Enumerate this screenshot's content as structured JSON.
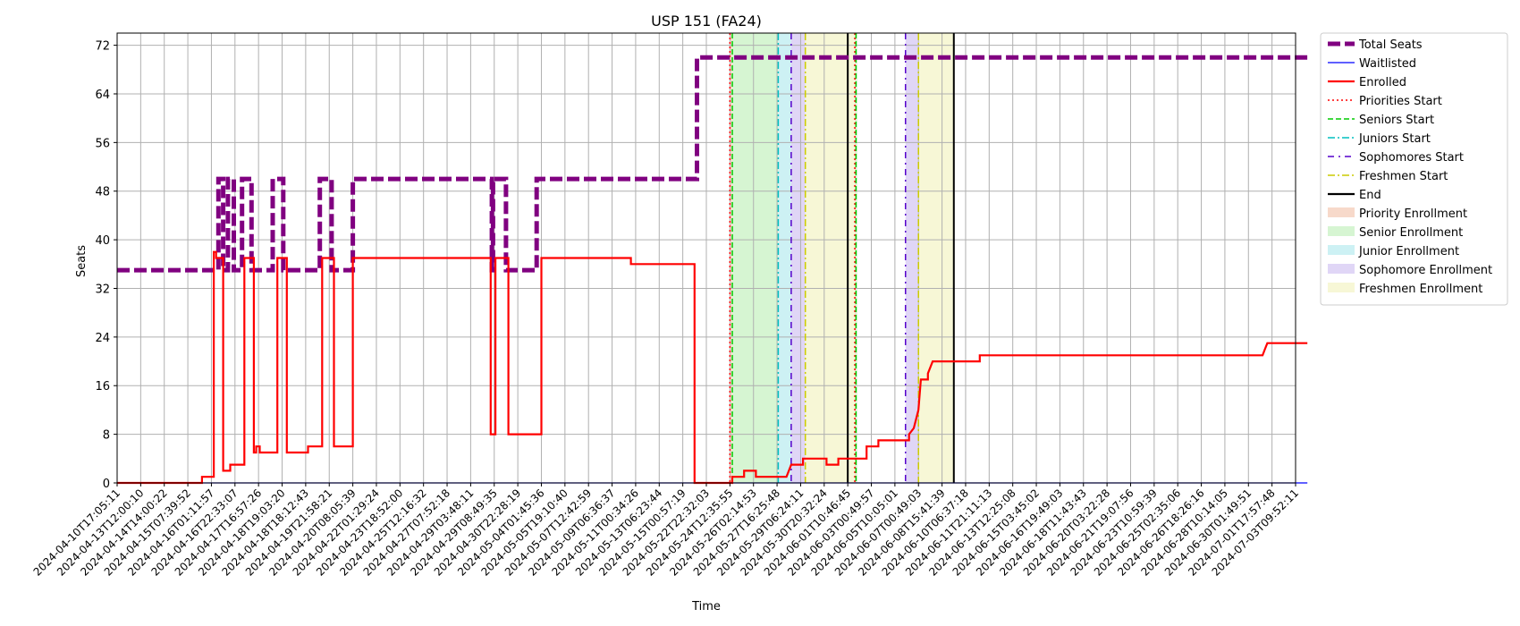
{
  "chart_data": {
    "type": "line",
    "title": "USP 151 (FA24)",
    "xlabel": "Time",
    "ylabel": "Seats",
    "ylim": [
      0,
      74
    ],
    "yticks": [
      0,
      8,
      16,
      24,
      32,
      40,
      48,
      56,
      64,
      72
    ],
    "x_tick_labels": [
      "2024-04-10T17:05:11",
      "2024-04-13T12:00:10",
      "2024-04-14T14:00:22",
      "2024-04-15T07:39:52",
      "2024-04-16T01:11:57",
      "2024-04-16T22:33:07",
      "2024-04-17T16:57:26",
      "2024-04-18T19:03:20",
      "2024-04-18T18:12:43",
      "2024-04-19T21:58:21",
      "2024-04-20T08:05:39",
      "2024-04-22T01:29:24",
      "2024-04-23T18:52:00",
      "2024-04-25T12:16:32",
      "2024-04-27T07:52:18",
      "2024-04-29T03:48:11",
      "2024-04-29T08:49:35",
      "2024-04-30T22:28:19",
      "2024-05-04T01:45:36",
      "2024-05-05T19:10:40",
      "2024-05-07T12:42:59",
      "2024-05-09T06:36:37",
      "2024-05-11T00:34:26",
      "2024-05-13T06:23:44",
      "2024-05-15T00:57:19",
      "2024-05-22T22:32:03",
      "2024-05-24T12:35:55",
      "2024-05-26T02:14:53",
      "2024-05-27T16:25:48",
      "2024-05-29T06:24:11",
      "2024-05-30T20:32:24",
      "2024-06-01T10:46:45",
      "2024-06-03T00:49:57",
      "2024-06-05T10:05:01",
      "2024-06-07T00:49:03",
      "2024-06-08T15:41:39",
      "2024-06-10T06:37:18",
      "2024-06-11T21:11:13",
      "2024-06-13T12:25:08",
      "2024-06-15T03:45:02",
      "2024-06-16T19:49:03",
      "2024-06-18T11:43:43",
      "2024-06-20T03:22:28",
      "2024-06-21T19:07:56",
      "2024-06-23T10:59:39",
      "2024-06-25T02:35:06",
      "2024-06-26T18:26:16",
      "2024-06-28T10:14:05",
      "2024-06-30T01:49:51",
      "2024-07-01T17:57:48",
      "2024-07-03T09:52:11"
    ],
    "series": [
      {
        "name": "Total Seats",
        "color": "#800080",
        "style": "dashed-thick",
        "points": [
          [
            0,
            35
          ],
          [
            4.3,
            35
          ],
          [
            4.3,
            50
          ],
          [
            4.5,
            50
          ],
          [
            4.5,
            35
          ],
          [
            4.7,
            35
          ],
          [
            4.7,
            50
          ],
          [
            4.95,
            50
          ],
          [
            4.95,
            35
          ],
          [
            5.3,
            35
          ],
          [
            5.3,
            50
          ],
          [
            5.7,
            50
          ],
          [
            5.7,
            35
          ],
          [
            6.6,
            35
          ],
          [
            6.6,
            50
          ],
          [
            7.05,
            50
          ],
          [
            7.05,
            35
          ],
          [
            8.6,
            35
          ],
          [
            8.6,
            50
          ],
          [
            9.1,
            50
          ],
          [
            9.1,
            35
          ],
          [
            10.0,
            35
          ],
          [
            10.0,
            50
          ],
          [
            15.9,
            50
          ],
          [
            15.9,
            35
          ],
          [
            15.95,
            35
          ],
          [
            15.95,
            50
          ],
          [
            16.5,
            50
          ],
          [
            16.5,
            35
          ],
          [
            17.8,
            35
          ],
          [
            17.8,
            50
          ],
          [
            24.6,
            50
          ],
          [
            24.6,
            70
          ],
          [
            50.5,
            70
          ]
        ]
      },
      {
        "name": "Waitlisted",
        "color": "#0000ff",
        "style": "solid-thin",
        "points": [
          [
            0,
            0
          ],
          [
            50.5,
            0
          ]
        ]
      },
      {
        "name": "Enrolled",
        "color": "#ff0000",
        "style": "solid",
        "points": [
          [
            0,
            0
          ],
          [
            3.6,
            0
          ],
          [
            3.6,
            1
          ],
          [
            4.1,
            1
          ],
          [
            4.1,
            38
          ],
          [
            4.2,
            38
          ],
          [
            4.2,
            37
          ],
          [
            4.5,
            37
          ],
          [
            4.5,
            2
          ],
          [
            4.8,
            2
          ],
          [
            4.8,
            3
          ],
          [
            5.4,
            3
          ],
          [
            5.4,
            37
          ],
          [
            5.8,
            37
          ],
          [
            5.8,
            5
          ],
          [
            5.9,
            5
          ],
          [
            5.9,
            6
          ],
          [
            6.05,
            6
          ],
          [
            6.05,
            5
          ],
          [
            6.8,
            5
          ],
          [
            6.8,
            37
          ],
          [
            7.2,
            37
          ],
          [
            7.2,
            5
          ],
          [
            8.1,
            5
          ],
          [
            8.1,
            6
          ],
          [
            8.7,
            6
          ],
          [
            8.7,
            37
          ],
          [
            9.2,
            37
          ],
          [
            9.2,
            6
          ],
          [
            10.0,
            6
          ],
          [
            10.0,
            37
          ],
          [
            15.85,
            37
          ],
          [
            15.85,
            8
          ],
          [
            16.05,
            8
          ],
          [
            16.05,
            37
          ],
          [
            16.6,
            37
          ],
          [
            16.6,
            8
          ],
          [
            18.0,
            8
          ],
          [
            18.0,
            37
          ],
          [
            21.8,
            37
          ],
          [
            21.8,
            36
          ],
          [
            24.5,
            36
          ],
          [
            24.5,
            0
          ],
          [
            26.1,
            0
          ],
          [
            26.1,
            1
          ],
          [
            26.6,
            1
          ],
          [
            26.6,
            2
          ],
          [
            27.1,
            2
          ],
          [
            27.1,
            1
          ],
          [
            28.4,
            1
          ],
          [
            28.6,
            3
          ],
          [
            29.1,
            3
          ],
          [
            29.1,
            4
          ],
          [
            30.1,
            4
          ],
          [
            30.1,
            3
          ],
          [
            30.6,
            3
          ],
          [
            30.6,
            4
          ],
          [
            31.8,
            4
          ],
          [
            31.8,
            6
          ],
          [
            32.3,
            6
          ],
          [
            32.3,
            7
          ],
          [
            33.6,
            7
          ],
          [
            33.6,
            8
          ],
          [
            33.8,
            9
          ],
          [
            34.0,
            12
          ],
          [
            34.1,
            17
          ],
          [
            34.4,
            17
          ],
          [
            34.4,
            18
          ],
          [
            34.6,
            20
          ],
          [
            36.6,
            20
          ],
          [
            36.6,
            21
          ],
          [
            48.6,
            21
          ],
          [
            48.7,
            22
          ],
          [
            48.8,
            23
          ],
          [
            50.5,
            23
          ]
        ]
      }
    ],
    "vertical_lines": [
      {
        "name": "Priorities Start",
        "x": 26.0,
        "color": "#ff0000",
        "style": "dotted"
      },
      {
        "name": "Seniors Start",
        "x": 26.1,
        "color": "#00cc00",
        "style": "dashed"
      },
      {
        "name": "Juniors Start",
        "x": 28.05,
        "color": "#00bfbf",
        "style": "dashdot"
      },
      {
        "name": "Sophomores Start",
        "x": 28.6,
        "color": "#5500cc",
        "style": "dashdotsparse"
      },
      {
        "name": "Freshmen Start",
        "x": 29.2,
        "color": "#cccc00",
        "style": "dashdot"
      },
      {
        "name": "End",
        "x": 31.0,
        "color": "#000000",
        "style": "solid"
      },
      {
        "name": "Priorities Start",
        "x": 31.3,
        "color": "#ff0000",
        "style": "dotted"
      },
      {
        "name": "Seniors Start",
        "x": 31.35,
        "color": "#00cc00",
        "style": "dashed"
      },
      {
        "name": "Sophomores Start",
        "x": 33.45,
        "color": "#5500cc",
        "style": "dashdotsparse"
      },
      {
        "name": "Freshmen Start",
        "x": 34.0,
        "color": "#cccc00",
        "style": "dashdot"
      },
      {
        "name": "End",
        "x": 35.5,
        "color": "#000000",
        "style": "solid"
      }
    ],
    "spans": [
      {
        "name": "Priority Enrollment",
        "x0": 26.0,
        "x1": 26.1,
        "color": "#f4c9b4"
      },
      {
        "name": "Senior Enrollment",
        "x0": 26.1,
        "x1": 28.05,
        "color": "#c5f1bf"
      },
      {
        "name": "Junior Enrollment",
        "x0": 28.05,
        "x1": 28.6,
        "color": "#b8ebf0"
      },
      {
        "name": "Sophomore Enrollment",
        "x0": 28.6,
        "x1": 29.2,
        "color": "#d3c4f2"
      },
      {
        "name": "Freshmen Enrollment",
        "x0": 29.2,
        "x1": 31.3,
        "color": "#f4f4c4"
      },
      {
        "name": "Priority Enrollment",
        "x0": 31.3,
        "x1": 31.35,
        "color": "#f4c9b4"
      },
      {
        "name": "Senior Enrollment",
        "x0": 31.35,
        "x1": 31.4,
        "color": "#c5f1bf"
      },
      {
        "name": "Sophomore Enrollment",
        "x0": 33.45,
        "x1": 34.0,
        "color": "#d3c4f2"
      },
      {
        "name": "Freshmen Enrollment",
        "x0": 34.0,
        "x1": 35.5,
        "color": "#f4f4c4"
      }
    ],
    "legend": {
      "placement": "outside-top-right",
      "entries": [
        {
          "label": "Total Seats",
          "kind": "line",
          "color": "#800080",
          "style": "dashed-thick"
        },
        {
          "label": "Waitlisted",
          "kind": "line",
          "color": "#0000ff",
          "style": "solid-thin"
        },
        {
          "label": "Enrolled",
          "kind": "line",
          "color": "#ff0000",
          "style": "solid"
        },
        {
          "label": "Priorities Start",
          "kind": "line",
          "color": "#ff0000",
          "style": "dotted"
        },
        {
          "label": "Seniors Start",
          "kind": "line",
          "color": "#00cc00",
          "style": "dashed"
        },
        {
          "label": "Juniors Start",
          "kind": "line",
          "color": "#00bfbf",
          "style": "dashdot"
        },
        {
          "label": "Sophomores Start",
          "kind": "line",
          "color": "#5500cc",
          "style": "dashdotsparse"
        },
        {
          "label": "Freshmen Start",
          "kind": "line",
          "color": "#cccc00",
          "style": "dashdot"
        },
        {
          "label": "End",
          "kind": "line",
          "color": "#000000",
          "style": "solid"
        },
        {
          "label": "Priority Enrollment",
          "kind": "patch",
          "color": "#f4c9b4"
        },
        {
          "label": "Senior Enrollment",
          "kind": "patch",
          "color": "#c5f1bf"
        },
        {
          "label": "Junior Enrollment",
          "kind": "patch",
          "color": "#b8ebf0"
        },
        {
          "label": "Sophomore Enrollment",
          "kind": "patch",
          "color": "#d3c4f2"
        },
        {
          "label": "Freshmen Enrollment",
          "kind": "patch",
          "color": "#f4f4c4"
        }
      ]
    },
    "grid": true
  }
}
